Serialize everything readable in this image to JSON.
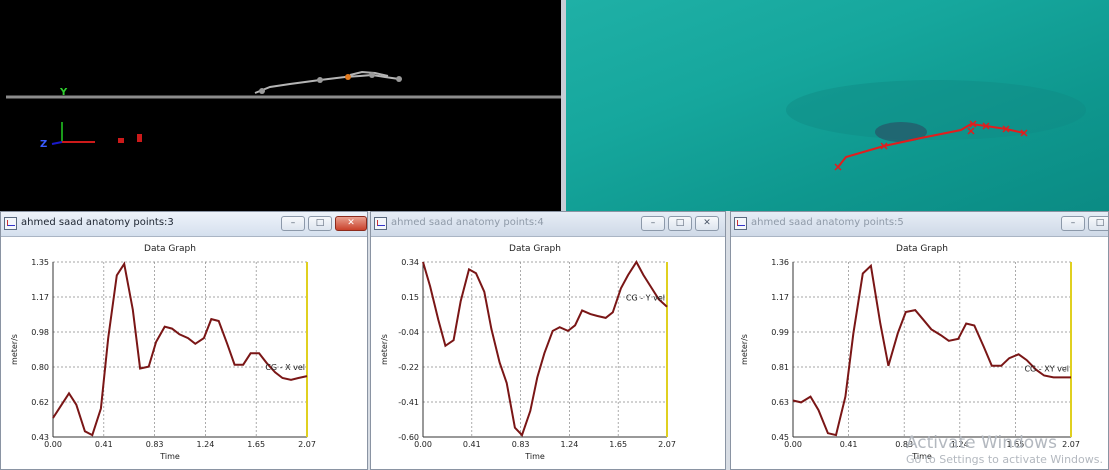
{
  "colors": {
    "series": "#7a1616",
    "cursor": "#e0d020",
    "water": "#16a79d",
    "marker": "#e11d1d"
  },
  "view3d": {
    "axis_labels": {
      "y": "Y",
      "z": "Z"
    }
  },
  "windows": [
    {
      "title": "ahmed saad anatomy points:3",
      "active": true,
      "chart": {
        "type": "line",
        "title": "Data Graph",
        "xlabel": "Time",
        "ylabel": "meter/s",
        "series_label": "CG - X vel",
        "xlim": [
          0,
          2.07
        ],
        "ylim": [
          0.43,
          1.35
        ],
        "x_ticks": [
          "0.00",
          "0.41",
          "0.83",
          "1.24",
          "1.65",
          "2.07"
        ],
        "y_ticks": [
          "1.35",
          "1.17",
          "0.98",
          "0.80",
          "0.62",
          "0.43"
        ],
        "x": [
          0.0,
          0.06,
          0.13,
          0.19,
          0.26,
          0.32,
          0.39,
          0.45,
          0.52,
          0.58,
          0.65,
          0.71,
          0.78,
          0.84,
          0.91,
          0.97,
          1.03,
          1.1,
          1.16,
          1.23,
          1.29,
          1.35,
          1.42,
          1.48,
          1.55,
          1.61,
          1.68,
          1.74,
          1.81,
          1.87,
          1.94,
          2.0,
          2.07
        ],
        "y": [
          0.53,
          0.59,
          0.66,
          0.6,
          0.46,
          0.44,
          0.58,
          0.95,
          1.28,
          1.34,
          1.1,
          0.79,
          0.8,
          0.93,
          1.01,
          1.0,
          0.97,
          0.95,
          0.92,
          0.95,
          1.05,
          1.04,
          0.92,
          0.81,
          0.81,
          0.87,
          0.87,
          0.82,
          0.77,
          0.74,
          0.73,
          0.74,
          0.75
        ]
      }
    },
    {
      "title": "ahmed saad anatomy points:4",
      "active": false,
      "chart": {
        "type": "line",
        "title": "Data Graph",
        "xlabel": "Time",
        "ylabel": "meter/s",
        "series_label": "CG - Y vel",
        "xlim": [
          0,
          2.07
        ],
        "ylim": [
          -0.6,
          0.34
        ],
        "x_ticks": [
          "0.00",
          "0.41",
          "0.83",
          "1.24",
          "1.65",
          "2.07"
        ],
        "y_ticks": [
          "0.34",
          "0.15",
          "-0.04",
          "-0.22",
          "-0.41",
          "-0.60"
        ],
        "x": [
          0.0,
          0.06,
          0.13,
          0.19,
          0.26,
          0.32,
          0.39,
          0.45,
          0.52,
          0.58,
          0.65,
          0.71,
          0.78,
          0.84,
          0.91,
          0.97,
          1.03,
          1.1,
          1.16,
          1.23,
          1.29,
          1.35,
          1.42,
          1.48,
          1.55,
          1.61,
          1.68,
          1.74,
          1.81,
          1.87,
          1.94,
          2.0,
          2.07
        ],
        "y": [
          0.34,
          0.21,
          0.03,
          -0.11,
          -0.08,
          0.13,
          0.3,
          0.28,
          0.18,
          -0.02,
          -0.2,
          -0.31,
          -0.55,
          -0.59,
          -0.46,
          -0.28,
          -0.15,
          -0.03,
          -0.01,
          -0.03,
          0.0,
          0.08,
          0.06,
          0.05,
          0.04,
          0.07,
          0.2,
          0.27,
          0.34,
          0.27,
          0.2,
          0.14,
          0.1
        ]
      }
    },
    {
      "title": "ahmed saad anatomy points:5",
      "active": false,
      "chart": {
        "type": "line",
        "title": "Data Graph",
        "xlabel": "Time",
        "ylabel": "meter/s",
        "series_label": "CG - XY vel",
        "xlim": [
          0,
          2.07
        ],
        "ylim": [
          0.45,
          1.36
        ],
        "x_ticks": [
          "0.00",
          "0.41",
          "0.83",
          "1.24",
          "1.65",
          "2.07"
        ],
        "y_ticks": [
          "1.36",
          "1.17",
          "0.99",
          "0.81",
          "0.63",
          "0.45"
        ],
        "x": [
          0.0,
          0.06,
          0.13,
          0.19,
          0.26,
          0.32,
          0.39,
          0.45,
          0.52,
          0.58,
          0.65,
          0.71,
          0.78,
          0.84,
          0.91,
          0.97,
          1.03,
          1.1,
          1.16,
          1.23,
          1.29,
          1.35,
          1.42,
          1.48,
          1.55,
          1.61,
          1.68,
          1.74,
          1.81,
          1.87,
          1.94,
          2.0,
          2.07
        ],
        "y": [
          0.64,
          0.63,
          0.66,
          0.59,
          0.47,
          0.46,
          0.66,
          0.99,
          1.3,
          1.34,
          1.04,
          0.82,
          0.99,
          1.1,
          1.11,
          1.06,
          1.01,
          0.98,
          0.95,
          0.96,
          1.04,
          1.03,
          0.92,
          0.82,
          0.82,
          0.86,
          0.88,
          0.85,
          0.8,
          0.77,
          0.76,
          0.76,
          0.76
        ]
      }
    }
  ],
  "watermark": {
    "line1": "Activate Windows",
    "line2": "Go to Settings to activate Windows."
  }
}
